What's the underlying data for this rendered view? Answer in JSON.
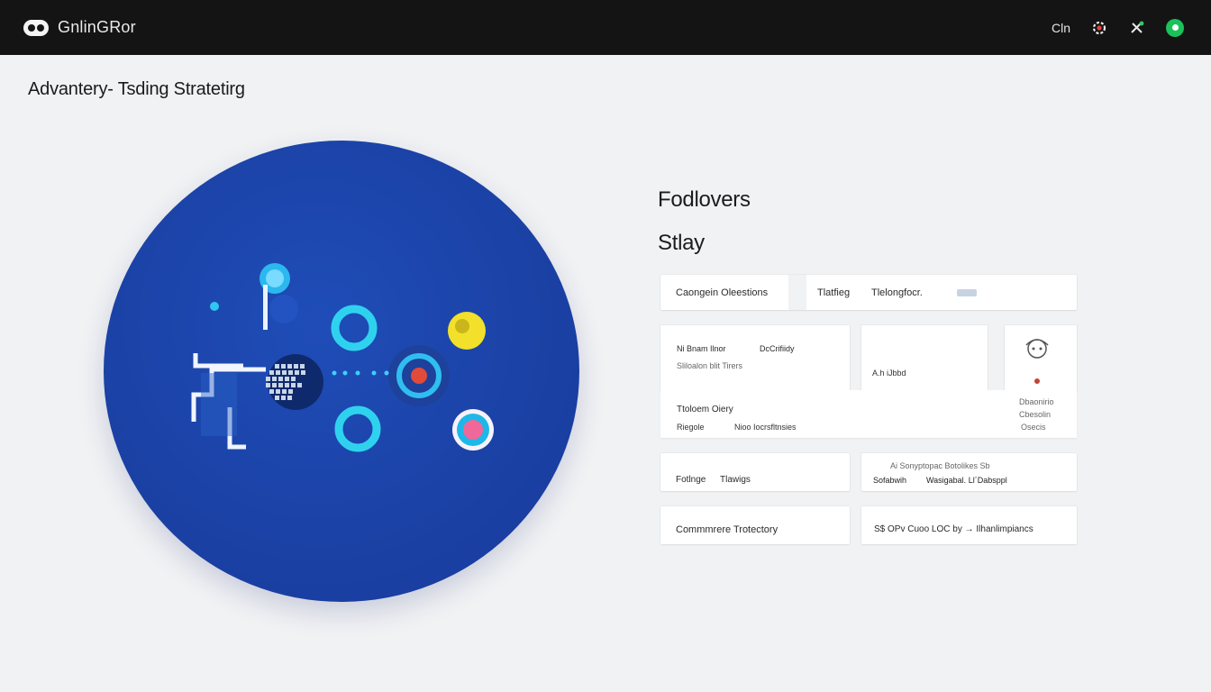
{
  "topbar": {
    "brand": "GnlinGRor",
    "actions": {
      "text_label": "Cln",
      "gear_icon": "gear-icon",
      "tools_icon": "tools-icon",
      "status_icon": "status-dot-icon"
    }
  },
  "page": {
    "title": "Advantery- Tsding Stratetirg"
  },
  "side": {
    "heading_1": "Fodlovers",
    "heading_2": "Stlay",
    "tabs": {
      "left": "Caongein Oleestions",
      "right_a": "Tlatfieg",
      "right_b": "Tlelongfocr."
    },
    "info_panel": {
      "row1_a": "Ni Bnam Ilnor",
      "row1_b": "DcCrifiidy",
      "row2": "Sliloalon blit Tirers",
      "row3": "Ttoloem Oiery",
      "row4_a": "Riegole",
      "row4_b": "Nioo Iocrsfltnsies"
    },
    "mid_panel": {
      "value": "A.h  iJbbd"
    },
    "avatar_panel": {
      "line1": "Dbaonirio",
      "line2": "Cbesolin",
      "line3": "Osecis"
    },
    "row_cards": [
      {
        "left": "Fotlnge",
        "right": "Tlawigs"
      },
      {
        "label_top": "Ai     Sonyptopac Botolikes Sb",
        "left": "Sofabwih",
        "right": "Wasigabal. Ll´Dabsppl"
      }
    ],
    "bottom_cards": [
      {
        "text": "Commmrere Trotectory"
      },
      {
        "text": "S$ OPv  Cuoo LOC by → Ilhanlimpiancs"
      }
    ]
  }
}
